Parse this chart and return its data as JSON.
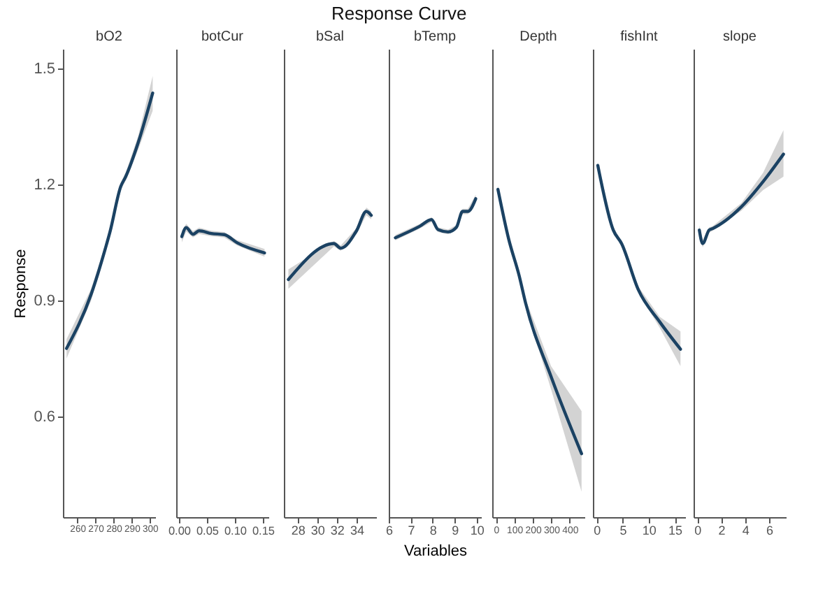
{
  "chart_data": [
    {
      "type": "line",
      "title": "bO2",
      "ylabel": "Response",
      "annotations": [
        "Response Curve"
      ],
      "xlim": [
        252,
        303
      ],
      "xticks": [
        260,
        270,
        280,
        290,
        300
      ],
      "ylim": [
        0.34,
        1.55
      ],
      "yticks": [
        0.6,
        0.9,
        1.2,
        1.5
      ],
      "grid": false,
      "series": [
        {
          "color": "#1b4263",
          "x": [
            254,
            267.6,
            275.5,
            278,
            284,
            286.6,
            293.6,
            301.6
          ],
          "values": [
            0.776,
            0.916,
            1.035,
            1.077,
            1.195,
            1.219,
            1.308,
            1.436
          ],
          "lower": [
            0.75,
            0.9,
            1.025,
            1.067,
            1.185,
            1.209,
            1.29,
            1.39
          ],
          "upper": [
            0.8,
            0.93,
            1.045,
            1.087,
            1.205,
            1.229,
            1.325,
            1.48
          ]
        }
      ]
    },
    {
      "type": "line",
      "title": "botCur",
      "xlim": [
        -0.005,
        0.16
      ],
      "xticks": [
        {
          "value": 0,
          "label": "0.00"
        },
        {
          "value": 0.05,
          "label": "0.05"
        },
        {
          "value": 0.1,
          "label": "0.10"
        },
        {
          "value": 0.15,
          "label": "0.15"
        }
      ],
      "ylim": [
        0.34,
        1.55
      ],
      "yticks": [
        0.6,
        0.9,
        1.2,
        1.5
      ],
      "tick_labels": "x",
      "grid": false,
      "series": [
        {
          "color": "#1b4263",
          "x": [
            0.005,
            0.013,
            0.025,
            0.036,
            0.058,
            0.081,
            0.104,
            0.153
          ],
          "values": [
            1.065,
            1.088,
            1.071,
            1.08,
            1.073,
            1.07,
            1.049,
            1.023
          ],
          "lower": [
            1.05,
            1.078,
            1.063,
            1.072,
            1.066,
            1.063,
            1.042,
            1.013
          ],
          "upper": [
            1.08,
            1.098,
            1.079,
            1.088,
            1.08,
            1.077,
            1.056,
            1.033
          ]
        }
      ]
    },
    {
      "type": "line",
      "title": "bSal",
      "xlim": [
        26.6,
        36
      ],
      "xticks": [
        28,
        30,
        32,
        34
      ],
      "ylim": [
        0.34,
        1.55
      ],
      "yticks": [
        0.6,
        0.9,
        1.2,
        1.5
      ],
      "tick_labels": "x",
      "grid": false,
      "series": [
        {
          "color": "#1b4263",
          "x": [
            27.06,
            31.7,
            32.4,
            34,
            35,
            35.5
          ],
          "values": [
            0.954,
            1.047,
            1.035,
            1.08,
            1.13,
            1.12
          ],
          "lower": [
            0.93,
            1.04,
            1.028,
            1.073,
            1.12,
            1.11
          ],
          "upper": [
            0.98,
            1.054,
            1.042,
            1.087,
            1.14,
            1.13
          ]
        }
      ]
    },
    {
      "type": "line",
      "title": "bTemp",
      "xlabel": "Variables",
      "xlim": [
        6,
        10.2
      ],
      "xticks": [
        6,
        7,
        8,
        9,
        10
      ],
      "ylim": [
        0.34,
        1.55
      ],
      "yticks": [
        0.6,
        0.9,
        1.2,
        1.5
      ],
      "tick_labels": "x",
      "grid": false,
      "series": [
        {
          "color": "#1b4263",
          "x": [
            6.3,
            7.39,
            7.95,
            8.24,
            8.7,
            9.08,
            9.36,
            9.6,
            9.96
          ],
          "values": [
            1.062,
            1.091,
            1.109,
            1.083,
            1.077,
            1.089,
            1.13,
            1.13,
            1.163
          ],
          "lower": [
            1.055,
            1.085,
            1.103,
            1.077,
            1.071,
            1.083,
            1.123,
            1.123,
            1.153
          ],
          "upper": [
            1.069,
            1.097,
            1.115,
            1.089,
            1.083,
            1.095,
            1.137,
            1.137,
            1.173
          ]
        }
      ]
    },
    {
      "type": "line",
      "title": "Depth",
      "xlim": [
        -20,
        480
      ],
      "xticks": [
        0,
        100,
        200,
        300,
        400
      ],
      "ylim": [
        0.34,
        1.55
      ],
      "yticks": [
        0.6,
        0.9,
        1.2,
        1.5
      ],
      "tick_labels": "x",
      "grid": false,
      "series": [
        {
          "color": "#1b4263",
          "x": [
            11,
            69,
            126,
            161,
            299,
            464
          ],
          "values": [
            1.187,
            1.059,
            0.964,
            0.893,
            0.703,
            0.504
          ],
          "lower": [
            1.177,
            1.051,
            0.956,
            0.883,
            0.67,
            0.406
          ],
          "upper": [
            1.197,
            1.067,
            0.972,
            0.903,
            0.73,
            0.614
          ]
        }
      ]
    },
    {
      "type": "line",
      "title": "fishInt",
      "xlim": [
        -0.7,
        17
      ],
      "xticks": [
        0,
        5,
        10,
        15
      ],
      "ylim": [
        0.34,
        1.55
      ],
      "yticks": [
        0.6,
        0.9,
        1.2,
        1.5
      ],
      "tick_labels": "x",
      "grid": false,
      "series": [
        {
          "color": "#1b4263",
          "x": [
            0.24,
            3.2,
            4.8,
            8,
            12.1,
            16.1
          ],
          "values": [
            1.249,
            1.082,
            1.047,
            0.928,
            0.845,
            0.774
          ],
          "lower": [
            1.24,
            1.075,
            1.04,
            0.92,
            0.83,
            0.73
          ],
          "upper": [
            1.258,
            1.089,
            1.054,
            0.936,
            0.858,
            0.82
          ]
        }
      ]
    },
    {
      "type": "line",
      "title": "slope",
      "xlim": [
        -0.3,
        7.4
      ],
      "xticks": [
        0,
        2,
        4,
        6
      ],
      "ylim": [
        0.34,
        1.55
      ],
      "yticks": [
        0.6,
        0.9,
        1.2,
        1.5
      ],
      "tick_labels": "x",
      "grid": false,
      "series": [
        {
          "color": "#1b4263",
          "x": [
            0.18,
            0.46,
            1.0,
            1.3,
            3.69,
            5.5,
            7.2
          ],
          "values": [
            1.082,
            1.047,
            1.082,
            1.086,
            1.142,
            1.207,
            1.278
          ],
          "lower": [
            1.07,
            1.037,
            1.075,
            1.08,
            1.132,
            1.185,
            1.22
          ],
          "upper": [
            1.094,
            1.057,
            1.089,
            1.092,
            1.152,
            1.23,
            1.34
          ]
        }
      ]
    }
  ]
}
